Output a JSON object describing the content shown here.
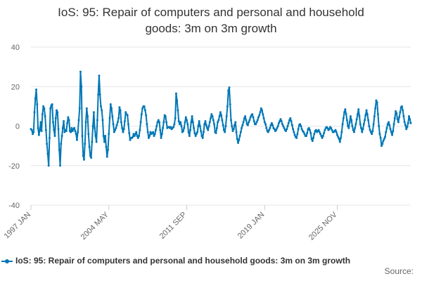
{
  "title_lines": [
    "IoS: 95: Repair of computers and personal and household",
    "goods: 3m on 3m growth"
  ],
  "source_label": "Source:",
  "colors": {
    "series": "#0077B6",
    "grid": "#e6e6e6",
    "axis_text": "#666666"
  },
  "chart_data": {
    "type": "line",
    "title": "IoS: 95: Repair of computers and personal and household goods: 3m on 3m growth",
    "xlabel": "",
    "ylabel": "",
    "ylim": [
      -40,
      40
    ],
    "yticks": [
      -40,
      -20,
      0,
      20,
      40
    ],
    "x_start": "1997 JAN",
    "x_end": "2025 NOV",
    "x_ticks": [
      {
        "label": "1997 JAN",
        "year": 1997,
        "month": 1
      },
      {
        "label": "2004 MAY",
        "year": 2004,
        "month": 5
      },
      {
        "label": "2011 SEP",
        "year": 2011,
        "month": 9
      },
      {
        "label": "2019 JAN",
        "year": 2019,
        "month": 1
      },
      {
        "label": "2025 NOV",
        "year": 2025,
        "month": 11
      }
    ],
    "grid": true,
    "legend_position": "bottom",
    "series": [
      {
        "name": "IoS: 95: Repair of computers and personal and household goods: 3m on 3m growth",
        "frequency": "monthly",
        "values": [
          -1.5,
          -2.0,
          -4.0,
          -3.0,
          7.0,
          14.0,
          18.5,
          11.0,
          -1.0,
          -4.5,
          -2.0,
          2.0,
          -2.5,
          6.0,
          10.0,
          9.0,
          5.0,
          -2.0,
          -9.0,
          -14.0,
          -20.0,
          -6.0,
          9.0,
          10.5,
          11.0,
          2.0,
          -2.0,
          -5.0,
          4.0,
          8.0,
          7.0,
          -1.5,
          -12.0,
          -20.0,
          -9.0,
          -5.0,
          -1.0,
          2.5,
          -3.0,
          -2.0,
          -2.5,
          1.5,
          4.5,
          3.0,
          -2.5,
          -3.0,
          -1.0,
          -2.5,
          -1.5,
          -1.0,
          -2.5,
          -4.0,
          -7.0,
          -3.0,
          3.0,
          9.0,
          27.5,
          20.0,
          -5.0,
          -15.0,
          -17.0,
          -9.0,
          2.0,
          9.0,
          5.0,
          -4.0,
          -10.5,
          -15.0,
          -16.0,
          -8.0,
          0.0,
          7.0,
          -1.0,
          -5.0,
          -8.0,
          3.0,
          16.0,
          25.5,
          16.0,
          10.0,
          8.0,
          3.0,
          -5.0,
          -8.0,
          -5.0,
          -10.5,
          -15.5,
          -12.0,
          -4.0,
          4.0,
          11.0,
          9.0,
          5.0,
          1.0,
          -3.0,
          -2.0,
          -1.0,
          0.5,
          2.0,
          4.0,
          9.5,
          8.0,
          2.0,
          -1.0,
          -3.0,
          -1.5,
          2.5,
          7.0,
          6.0,
          5.5,
          1.0,
          -3.5,
          -7.0,
          -6.0,
          -6.0,
          -5.5,
          -4.0,
          -5.0,
          -4.0,
          -3.0,
          -5.0,
          -6.0,
          -5.0,
          -2.0,
          2.0,
          6.0,
          9.0,
          10.0,
          10.0,
          8.0,
          5.5,
          1.0,
          -3.0,
          -6.0,
          -5.0,
          -3.0,
          -4.0,
          -3.5,
          -3.0,
          -5.0,
          -4.0,
          -2.0,
          0.0,
          2.0,
          3.0,
          2.0,
          -2.0,
          -6.0,
          -4.0,
          -1.0,
          2.0,
          5.5,
          5.0,
          2.0,
          -1.0,
          -0.5,
          -0.5,
          -1.0,
          -0.5,
          -1.5,
          -1.0,
          -0.5,
          1.0,
          4.0,
          16.5,
          13.0,
          8.0,
          2.5,
          1.0,
          2.0,
          0.0,
          -3.0,
          -2.5,
          -1.0,
          2.0,
          4.5,
          3.0,
          1.0,
          -3.0,
          -5.0,
          -2.0,
          2.0,
          5.0,
          2.0,
          -1.0,
          -3.5,
          -5.0,
          -4.0,
          -3.0,
          0.0,
          2.5,
          0.0,
          -2.5,
          -5.0,
          -6.0,
          -3.0,
          1.0,
          2.5,
          0.5,
          -1.0,
          -2.0,
          0.0,
          2.0,
          4.0,
          6.0,
          5.0,
          3.0,
          1.0,
          -3.0,
          -3.5,
          -1.0,
          2.0,
          3.0,
          5.0,
          7.0,
          5.5,
          3.0,
          0.5,
          -2.0,
          -3.0,
          0.0,
          5.0,
          10.0,
          18.0,
          19.5,
          11.0,
          3.0,
          0.0,
          -2.5,
          -1.5,
          0.5,
          2.0,
          -3.0,
          -6.5,
          -8.5,
          -7.0,
          -5.0,
          -3.0,
          -1.0,
          0.5,
          2.0,
          4.0,
          5.0,
          3.0,
          1.0,
          0.5,
          2.0,
          3.0,
          4.5,
          5.5,
          6.0,
          4.5,
          2.5,
          1.0,
          1.0,
          2.0,
          3.0,
          4.5,
          5.5,
          7.0,
          9.0,
          8.0,
          6.0,
          4.0,
          2.0,
          1.0,
          -1.0,
          -2.5,
          -3.0,
          -2.0,
          -1.0,
          0.5,
          1.5,
          0.5,
          -1.0,
          -1.5,
          -2.5,
          -2.0,
          -1.0,
          0.0,
          1.5,
          2.5,
          3.5,
          2.5,
          1.0,
          0.0,
          -1.0,
          -2.0,
          -2.5,
          -1.5,
          0.0,
          1.5,
          3.0,
          4.0,
          2.5,
          0.5,
          -1.5,
          -3.0,
          -4.5,
          -5.5,
          -6.0,
          -4.0,
          -1.5,
          0.5,
          1.0,
          0.0,
          -1.5,
          -2.5,
          -3.0,
          -4.0,
          -5.0,
          -5.0,
          -3.5,
          -1.5,
          -1.0,
          -2.0,
          -3.5,
          -6.5,
          -7.5,
          -6.0,
          -4.0,
          -2.5,
          -2.0,
          -3.0,
          -2.5,
          -2.0,
          -3.0,
          -4.0,
          -5.0,
          -6.0,
          -5.0,
          -3.5,
          -2.0,
          -1.0,
          -0.5,
          -1.0,
          -2.0,
          -1.5,
          -0.5,
          -1.0,
          -2.0,
          -3.0,
          -3.0,
          -2.5,
          -2.0,
          -3.0,
          -4.5,
          -5.5,
          -6.5,
          -8.0,
          -6.0,
          -3.0,
          1.0,
          4.0,
          7.0,
          8.5,
          6.0,
          3.0,
          0.0,
          -1.0,
          2.0,
          5.0,
          3.0,
          0.0,
          -2.0,
          -3.0,
          -1.0,
          1.0,
          3.5,
          6.0,
          8.5,
          5.0,
          1.0,
          -1.0,
          -3.0,
          -1.5,
          1.0,
          3.0,
          5.5,
          8.0,
          6.0,
          3.0,
          0.0,
          -2.0,
          -3.0,
          -4.0,
          -2.5,
          1.0,
          5.0,
          9.0,
          13.0,
          12.0,
          6.0,
          0.0,
          -4.0,
          -6.0,
          -10.0,
          -9.0,
          -7.5,
          -6.5,
          -5.5,
          -3.0,
          -1.0,
          1.0,
          2.0,
          0.5,
          -1.5,
          -3.0,
          -4.5,
          -2.5,
          1.0,
          4.0,
          7.5,
          6.5,
          3.5,
          2.0,
          4.5,
          7.0,
          9.5,
          10.0,
          8.0,
          5.0,
          2.0,
          0.5,
          -1.5,
          -0.5,
          1.5,
          5.0,
          3.5,
          1.5
        ]
      }
    ]
  }
}
